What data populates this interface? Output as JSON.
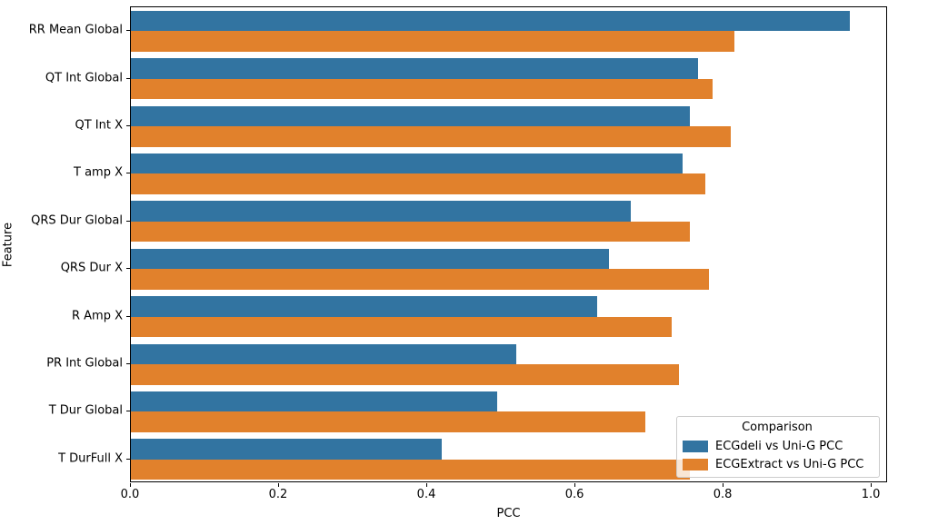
{
  "chart_data": {
    "type": "bar",
    "orientation": "horizontal",
    "title": "",
    "xlabel": "PCC",
    "ylabel": "Feature",
    "xlim": [
      0,
      1.022
    ],
    "xtick_labels": [
      "0.0",
      "0.2",
      "0.4",
      "0.6",
      "0.8",
      "1.0"
    ],
    "xtick_values": [
      0.0,
      0.2,
      0.4,
      0.6,
      0.8,
      1.0
    ],
    "grid": false,
    "categories": [
      "RR Mean Global",
      "QT Int Global",
      "QT Int X",
      "T amp X",
      "QRS Dur Global",
      "QRS Dur X",
      "R Amp X",
      "PR Int Global",
      "T Dur Global",
      "T DurFull X"
    ],
    "series": [
      {
        "name": "ECGdeli vs Uni-G PCC",
        "color": "#3274a1",
        "values": [
          0.97,
          0.765,
          0.755,
          0.745,
          0.675,
          0.645,
          0.63,
          0.52,
          0.495,
          0.42
        ]
      },
      {
        "name": "ECGExtract vs Uni-G PCC",
        "color": "#e1812c",
        "values": [
          0.815,
          0.785,
          0.81,
          0.775,
          0.755,
          0.78,
          0.73,
          0.74,
          0.695,
          0.755
        ]
      }
    ],
    "legend": {
      "title": "Comparison",
      "position": "lower right"
    }
  },
  "colors": {
    "series_blue": "#3274a1",
    "series_orange": "#e1812c",
    "spine": "#000000",
    "legend_border": "#cccccc"
  }
}
